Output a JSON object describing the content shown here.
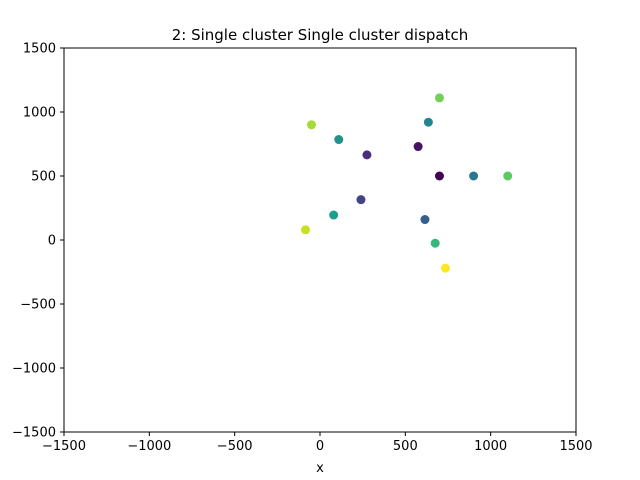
{
  "chart_data": {
    "type": "scatter",
    "title": "2: Single cluster Single cluster dispatch",
    "xlabel": "x",
    "ylabel": "",
    "xlim": [
      -1500,
      1500
    ],
    "ylim": [
      -1500,
      1500
    ],
    "xticks": [
      -1500,
      -1000,
      -500,
      0,
      500,
      1000,
      1500
    ],
    "yticks": [
      -1500,
      -1000,
      -500,
      0,
      500,
      1000,
      1500
    ],
    "xtick_labels": [
      "−1500",
      "−1000",
      "−500",
      "0",
      "500",
      "1000",
      "1500"
    ],
    "ytick_labels": [
      "−1500",
      "−1000",
      "−500",
      "0",
      "500",
      "1000",
      "1500"
    ],
    "grid": false,
    "colormap": "viridis",
    "points": [
      {
        "x": 700,
        "y": 500,
        "color": "#440154"
      },
      {
        "x": 575,
        "y": 730,
        "color": "#471365"
      },
      {
        "x": 275,
        "y": 665,
        "color": "#472f7d"
      },
      {
        "x": 240,
        "y": 315,
        "color": "#414487"
      },
      {
        "x": 615,
        "y": 160,
        "color": "#355f8d"
      },
      {
        "x": 900,
        "y": 500,
        "color": "#2a788e"
      },
      {
        "x": 635,
        "y": 920,
        "color": "#25848e"
      },
      {
        "x": 110,
        "y": 785,
        "color": "#21918c"
      },
      {
        "x": 80,
        "y": 195,
        "color": "#1f9e89"
      },
      {
        "x": 675,
        "y": -25,
        "color": "#35b779"
      },
      {
        "x": 1100,
        "y": 500,
        "color": "#5ec962"
      },
      {
        "x": 700,
        "y": 1110,
        "color": "#73d056"
      },
      {
        "x": -50,
        "y": 900,
        "color": "#a5db36"
      },
      {
        "x": -85,
        "y": 80,
        "color": "#c8e020"
      },
      {
        "x": 735,
        "y": -220,
        "color": "#fde725"
      }
    ]
  }
}
